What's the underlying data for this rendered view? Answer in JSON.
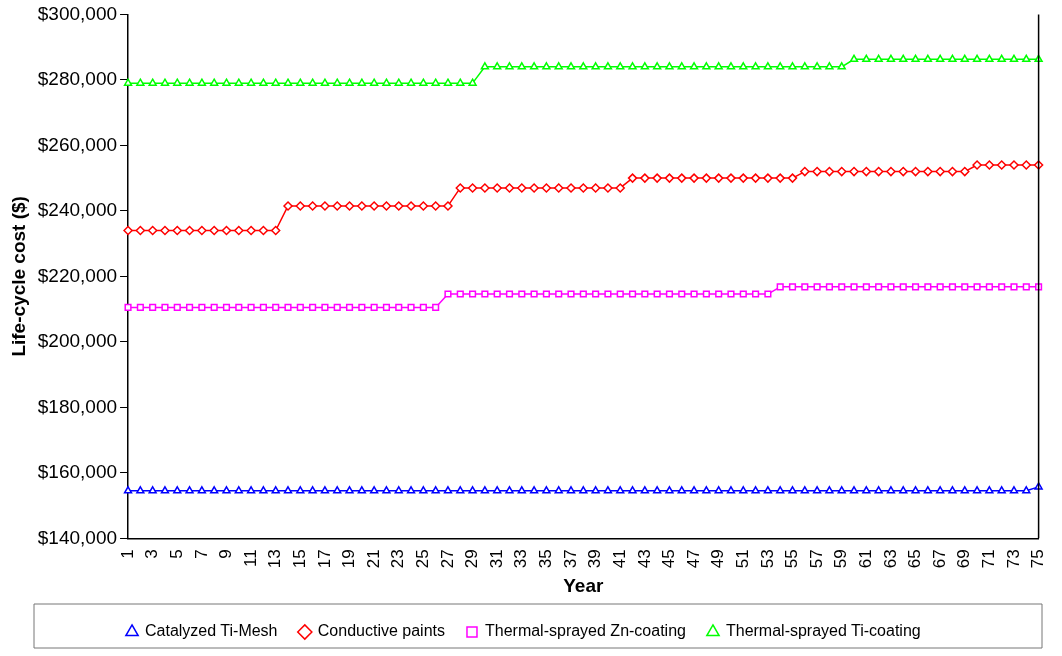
{
  "chart_data": {
    "type": "line",
    "xlabel": "Year",
    "ylabel": "Life-cycle cost ($)",
    "categories": [
      "1",
      null,
      "3",
      null,
      "5",
      null,
      "7",
      null,
      "9",
      null,
      "11",
      null,
      "13",
      null,
      "15",
      null,
      "17",
      null,
      "19",
      null,
      "21",
      null,
      "23",
      null,
      "25",
      null,
      "27",
      null,
      "29",
      null,
      "31",
      null,
      "33",
      null,
      "35",
      null,
      "37",
      null,
      "39",
      null,
      "41",
      null,
      "43",
      null,
      "45",
      null,
      "47",
      null,
      "49",
      null,
      "51",
      null,
      "53",
      null,
      "55",
      null,
      "57",
      null,
      "59",
      null,
      "61",
      null,
      "63",
      null,
      "65",
      null,
      "67",
      null,
      "69",
      null,
      "71",
      null,
      "73",
      null,
      "75"
    ],
    "ylim": [
      140000,
      300000
    ],
    "yticks": [
      {
        "value": 140000,
        "label": "$140,000"
      },
      {
        "value": 160000,
        "label": "$160,000"
      },
      {
        "value": 180000,
        "label": "$180,000"
      },
      {
        "value": 200000,
        "label": "$200,000"
      },
      {
        "value": 220000,
        "label": "$220,000"
      },
      {
        "value": 240000,
        "label": "$240,000"
      },
      {
        "value": 260000,
        "label": "$260,000"
      },
      {
        "value": 280000,
        "label": "$280,000"
      },
      {
        "value": 300000,
        "label": "$300,000"
      }
    ],
    "grid": false,
    "legend": "bottom",
    "line_style": "solid",
    "series": [
      {
        "name": "Catalyzed Ti-Mesh",
        "color": "#0000ff",
        "marker": "triangle",
        "values": [
          154500,
          154500,
          154500,
          154500,
          154500,
          154500,
          154500,
          154500,
          154500,
          154500,
          154500,
          154500,
          154500,
          154500,
          154500,
          154500,
          154500,
          154500,
          154500,
          154500,
          154500,
          154500,
          154500,
          154500,
          154500,
          154500,
          154500,
          154500,
          154500,
          154500,
          154500,
          154500,
          154500,
          154500,
          154500,
          154500,
          154500,
          154500,
          154500,
          154500,
          154500,
          154500,
          154500,
          154500,
          154500,
          154500,
          154500,
          154500,
          154500,
          154500,
          154500,
          154500,
          154500,
          154500,
          154500,
          154500,
          154500,
          154500,
          154500,
          154500,
          154500,
          154500,
          154500,
          154500,
          154500,
          154500,
          154500,
          154500,
          154500,
          154500,
          154500,
          154500,
          154500,
          154500,
          155700
        ]
      },
      {
        "name": "Conductive paints",
        "color": "#ff0000",
        "marker": "diamond",
        "values": [
          234000,
          234000,
          234000,
          234000,
          234000,
          234000,
          234000,
          234000,
          234000,
          234000,
          234000,
          234000,
          234000,
          241500,
          241500,
          241500,
          241500,
          241500,
          241500,
          241500,
          241500,
          241500,
          241500,
          241500,
          241500,
          241500,
          241500,
          247000,
          247000,
          247000,
          247000,
          247000,
          247000,
          247000,
          247000,
          247000,
          247000,
          247000,
          247000,
          247000,
          247000,
          250000,
          250000,
          250000,
          250000,
          250000,
          250000,
          250000,
          250000,
          250000,
          250000,
          250000,
          250000,
          250000,
          250000,
          252000,
          252000,
          252000,
          252000,
          252000,
          252000,
          252000,
          252000,
          252000,
          252000,
          252000,
          252000,
          252000,
          252000,
          254000,
          254000,
          254000,
          254000,
          254000,
          254000
        ]
      },
      {
        "name": "Thermal-sprayed Zn-coating",
        "color": "#ff00ff",
        "marker": "square",
        "values": [
          210500,
          210500,
          210500,
          210500,
          210500,
          210500,
          210500,
          210500,
          210500,
          210500,
          210500,
          210500,
          210500,
          210500,
          210500,
          210500,
          210500,
          210500,
          210500,
          210500,
          210500,
          210500,
          210500,
          210500,
          210500,
          210500,
          214600,
          214600,
          214600,
          214600,
          214600,
          214600,
          214600,
          214600,
          214600,
          214600,
          214600,
          214600,
          214600,
          214600,
          214600,
          214600,
          214600,
          214600,
          214600,
          214600,
          214600,
          214600,
          214600,
          214600,
          214600,
          214600,
          214600,
          216800,
          216800,
          216800,
          216800,
          216800,
          216800,
          216800,
          216800,
          216800,
          216800,
          216800,
          216800,
          216800,
          216800,
          216800,
          216800,
          216800,
          216800,
          216800,
          216800,
          216800,
          216800
        ]
      },
      {
        "name": "Thermal-sprayed Ti-coating",
        "color": "#00ff00",
        "marker": "triangle",
        "values": [
          279000,
          279000,
          279000,
          279000,
          279000,
          279000,
          279000,
          279000,
          279000,
          279000,
          279000,
          279000,
          279000,
          279000,
          279000,
          279000,
          279000,
          279000,
          279000,
          279000,
          279000,
          279000,
          279000,
          279000,
          279000,
          279000,
          279000,
          279000,
          279000,
          284000,
          284000,
          284000,
          284000,
          284000,
          284000,
          284000,
          284000,
          284000,
          284000,
          284000,
          284000,
          284000,
          284000,
          284000,
          284000,
          284000,
          284000,
          284000,
          284000,
          284000,
          284000,
          284000,
          284000,
          284000,
          284000,
          284000,
          284000,
          284000,
          284000,
          286300,
          286300,
          286300,
          286300,
          286300,
          286300,
          286300,
          286300,
          286300,
          286300,
          286300,
          286300,
          286300,
          286300,
          286300,
          286300
        ]
      }
    ]
  }
}
